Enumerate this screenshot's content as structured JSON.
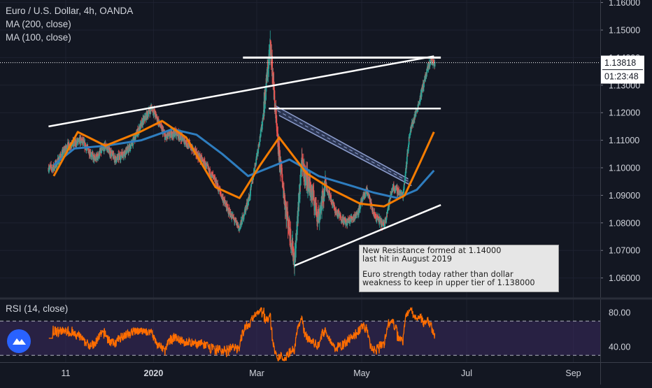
{
  "header": {
    "symbol_line": "Euro / U.S. Dollar, 4h, OANDA",
    "indicators": [
      "MA (200, close)",
      "MA (100, close)"
    ]
  },
  "rsi": {
    "label": "RSI (14, close)",
    "ticks": [
      "80.00",
      "40.00"
    ]
  },
  "note": {
    "lines_a": [
      "New Resistance formed at 1.14000",
      "last hit in August 2019"
    ],
    "lines_b": [
      "Euro strength today rather than dollar",
      "weakness to keep in upper tier of 1.138000"
    ]
  },
  "price_badge": {
    "price": "1.13818",
    "countdown": "01:23:48"
  },
  "colors": {
    "background": "#131722",
    "up": "#26a69a",
    "down": "#ef5350",
    "ma200": "#2e7dbf",
    "ma100": "#f57c00",
    "rsi_line": "#ff6d00",
    "rsi_band": "#3a2a5e",
    "channel": "#4a5a8c",
    "trendline": "#ffffff"
  },
  "icons": {
    "logo": "tradingview-cloud-icon"
  },
  "chart_data": {
    "type": "candlestick",
    "instrument": "Euro / U.S. Dollar",
    "timeframe": "4h",
    "source": "OANDA",
    "y_ticks": [
      "1.16000",
      "1.15000",
      "1.14000",
      "1.13000",
      "1.12000",
      "1.11000",
      "1.10000",
      "1.09000",
      "1.08000",
      "1.07000",
      "1.06000"
    ],
    "ylim": [
      1.057,
      1.16
    ],
    "x_ticks": [
      "11",
      "2020",
      "Mar",
      "May",
      "Jul",
      "Sep"
    ],
    "close_path": [
      {
        "d": "2019-11-04",
        "v": 1.1
      },
      {
        "d": "2019-11-12",
        "v": 1.108
      },
      {
        "d": "2019-11-20",
        "v": 1.11
      },
      {
        "d": "2019-11-28",
        "v": 1.103
      },
      {
        "d": "2019-12-04",
        "v": 1.108
      },
      {
        "d": "2019-12-10",
        "v": 1.103
      },
      {
        "d": "2019-12-18",
        "v": 1.107
      },
      {
        "d": "2019-12-26",
        "v": 1.117
      },
      {
        "d": "2019-12-31",
        "v": 1.122
      },
      {
        "d": "2020-01-08",
        "v": 1.111
      },
      {
        "d": "2020-01-14",
        "v": 1.113
      },
      {
        "d": "2020-01-22",
        "v": 1.108
      },
      {
        "d": "2020-01-30",
        "v": 1.102
      },
      {
        "d": "2020-02-06",
        "v": 1.095
      },
      {
        "d": "2020-02-13",
        "v": 1.085
      },
      {
        "d": "2020-02-20",
        "v": 1.078
      },
      {
        "d": "2020-02-26",
        "v": 1.09
      },
      {
        "d": "2020-03-04",
        "v": 1.115
      },
      {
        "d": "2020-03-09",
        "v": 1.145
      },
      {
        "d": "2020-03-13",
        "v": 1.11
      },
      {
        "d": "2020-03-18",
        "v": 1.085
      },
      {
        "d": "2020-03-23",
        "v": 1.066
      },
      {
        "d": "2020-03-27",
        "v": 1.101
      },
      {
        "d": "2020-04-01",
        "v": 1.093
      },
      {
        "d": "2020-04-06",
        "v": 1.082
      },
      {
        "d": "2020-04-10",
        "v": 1.094
      },
      {
        "d": "2020-04-16",
        "v": 1.084
      },
      {
        "d": "2020-04-22",
        "v": 1.08
      },
      {
        "d": "2020-04-28",
        "v": 1.083
      },
      {
        "d": "2020-05-04",
        "v": 1.092
      },
      {
        "d": "2020-05-08",
        "v": 1.083
      },
      {
        "d": "2020-05-14",
        "v": 1.079
      },
      {
        "d": "2020-05-19",
        "v": 1.093
      },
      {
        "d": "2020-05-25",
        "v": 1.09
      },
      {
        "d": "2020-05-29",
        "v": 1.113
      },
      {
        "d": "2020-06-03",
        "v": 1.123
      },
      {
        "d": "2020-06-07",
        "v": 1.133
      },
      {
        "d": "2020-06-10",
        "v": 1.139
      },
      {
        "d": "2020-06-12",
        "v": 1.138
      }
    ],
    "ma200": [
      {
        "d": "2019-11-04",
        "v": 1.101
      },
      {
        "d": "2019-11-16",
        "v": 1.107
      },
      {
        "d": "2019-12-04",
        "v": 1.108
      },
      {
        "d": "2019-12-25",
        "v": 1.11
      },
      {
        "d": "2020-01-12",
        "v": 1.114
      },
      {
        "d": "2020-01-26",
        "v": 1.112
      },
      {
        "d": "2020-02-10",
        "v": 1.105
      },
      {
        "d": "2020-02-25",
        "v": 1.097
      },
      {
        "d": "2020-03-08",
        "v": 1.1
      },
      {
        "d": "2020-03-20",
        "v": 1.103
      },
      {
        "d": "2020-04-06",
        "v": 1.097
      },
      {
        "d": "2020-04-22",
        "v": 1.094
      },
      {
        "d": "2020-05-08",
        "v": 1.091
      },
      {
        "d": "2020-05-22",
        "v": 1.089
      },
      {
        "d": "2020-06-02",
        "v": 1.092
      },
      {
        "d": "2020-06-12",
        "v": 1.099
      }
    ],
    "ma100": [
      {
        "d": "2019-11-04",
        "v": 1.097
      },
      {
        "d": "2019-11-18",
        "v": 1.113
      },
      {
        "d": "2019-12-04",
        "v": 1.108
      },
      {
        "d": "2019-12-24",
        "v": 1.113
      },
      {
        "d": "2020-01-06",
        "v": 1.117
      },
      {
        "d": "2020-01-20",
        "v": 1.111
      },
      {
        "d": "2020-02-06",
        "v": 1.093
      },
      {
        "d": "2020-02-20",
        "v": 1.089
      },
      {
        "d": "2020-03-03",
        "v": 1.101
      },
      {
        "d": "2020-03-14",
        "v": 1.111
      },
      {
        "d": "2020-03-30",
        "v": 1.098
      },
      {
        "d": "2020-04-14",
        "v": 1.092
      },
      {
        "d": "2020-04-30",
        "v": 1.087
      },
      {
        "d": "2020-05-14",
        "v": 1.086
      },
      {
        "d": "2020-05-26",
        "v": 1.09
      },
      {
        "d": "2020-06-04",
        "v": 1.102
      },
      {
        "d": "2020-06-12",
        "v": 1.113
      }
    ],
    "resistance_line": {
      "value": 1.14,
      "from": "2020-02-22",
      "to": "2020-06-16"
    },
    "mid_line": {
      "value": 1.1215,
      "from": "2020-03-08",
      "to": "2020-06-16"
    },
    "rising_trendline": [
      {
        "d": "2019-11-01",
        "v": 1.115
      },
      {
        "d": "2020-06-12",
        "v": 1.1405
      }
    ],
    "support_trendline": [
      {
        "d": "2020-03-23",
        "v": 1.0645
      },
      {
        "d": "2020-06-16",
        "v": 1.0865
      }
    ],
    "falling_channel": {
      "upper": [
        {
          "d": "2020-03-12",
          "v": 1.1225
        },
        {
          "d": "2020-05-28",
          "v": 1.096
        }
      ],
      "lower": [
        {
          "d": "2020-03-14",
          "v": 1.119
        },
        {
          "d": "2020-05-30",
          "v": 1.0935
        }
      ]
    },
    "rsi": {
      "ylim": [
        20,
        100
      ],
      "overbought": 70,
      "oversold": 30
    }
  }
}
